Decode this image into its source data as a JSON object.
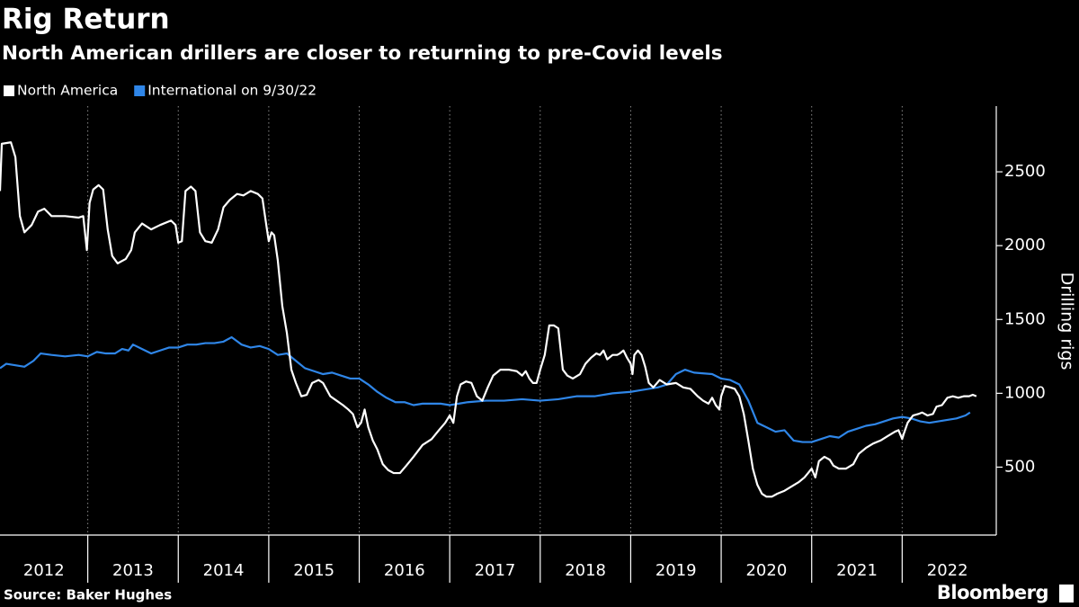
{
  "chart_data": {
    "type": "line",
    "title": "Rig Return",
    "subtitle": "North American drillers are closer to returning to pre-Covid levels",
    "y_label": "Drilling rigs",
    "source": "Source: Baker Hughes",
    "brand": "Bloomberg",
    "legend": "top-left",
    "grid": "x",
    "background": "#000000",
    "xlim": [
      2012.03,
      2023.04
    ],
    "xticks": [
      2012,
      2013,
      2014,
      2015,
      2016,
      2017,
      2018,
      2019,
      2020,
      2021,
      2022
    ],
    "ylim": [
      40,
      2945
    ],
    "yticks": [
      500,
      1000,
      1500,
      2000,
      2500
    ],
    "series": [
      {
        "name": "North America",
        "color": "#ffffff",
        "x": [
          2012.03,
          2012.05,
          2012.15,
          2012.2,
          2012.25,
          2012.3,
          2012.38,
          2012.45,
          2012.52,
          2012.6,
          2012.75,
          2012.9,
          2012.95,
          2012.99,
          2013.02,
          2013.06,
          2013.12,
          2013.17,
          2013.22,
          2013.27,
          2013.33,
          2013.42,
          2013.48,
          2013.52,
          2013.6,
          2013.7,
          2013.8,
          2013.92,
          2013.97,
          2014.0,
          2014.04,
          2014.08,
          2014.14,
          2014.19,
          2014.24,
          2014.3,
          2014.37,
          2014.44,
          2014.5,
          2014.57,
          2014.65,
          2014.72,
          2014.8,
          2014.88,
          2014.93,
          2014.98,
          2015.0,
          2015.03,
          2015.06,
          2015.1,
          2015.15,
          2015.2,
          2015.25,
          2015.3,
          2015.36,
          2015.42,
          2015.48,
          2015.55,
          2015.6,
          2015.68,
          2015.75,
          2015.82,
          2015.88,
          2015.93,
          2015.98,
          2016.02,
          2016.06,
          2016.1,
          2016.15,
          2016.2,
          2016.26,
          2016.32,
          2016.38,
          2016.45,
          2016.52,
          2016.6,
          2016.7,
          2016.8,
          2016.88,
          2016.95,
          2017.0,
          2017.04,
          2017.08,
          2017.12,
          2017.18,
          2017.24,
          2017.3,
          2017.36,
          2017.42,
          2017.48,
          2017.56,
          2017.65,
          2017.74,
          2017.8,
          2017.84,
          2017.88,
          2017.92,
          2017.96,
          2018.0,
          2018.05,
          2018.1,
          2018.15,
          2018.2,
          2018.25,
          2018.3,
          2018.36,
          2018.44,
          2018.5,
          2018.56,
          2018.62,
          2018.66,
          2018.7,
          2018.74,
          2018.8,
          2018.85,
          2018.88,
          2018.92,
          2018.96,
          2019.0,
          2019.02,
          2019.04,
          2019.08,
          2019.12,
          2019.16,
          2019.2,
          2019.25,
          2019.32,
          2019.4,
          2019.5,
          2019.58,
          2019.66,
          2019.74,
          2019.8,
          2019.86,
          2019.9,
          2019.94,
          2019.98,
          2020.0,
          2020.04,
          2020.1,
          2020.15,
          2020.2,
          2020.25,
          2020.3,
          2020.35,
          2020.4,
          2020.45,
          2020.5,
          2020.56,
          2020.62,
          2020.7,
          2020.78,
          2020.86,
          2020.92,
          2020.96,
          2021.0,
          2021.04,
          2021.08,
          2021.14,
          2021.2,
          2021.24,
          2021.3,
          2021.38,
          2021.46,
          2021.52,
          2021.6,
          2021.68,
          2021.76,
          2021.84,
          2021.92,
          2021.96,
          2022.0,
          2022.02,
          2022.06,
          2022.12,
          2022.18,
          2022.22,
          2022.28,
          2022.34,
          2022.38,
          2022.44,
          2022.5,
          2022.56,
          2022.62,
          2022.68,
          2022.74,
          2022.78,
          2022.82
        ],
        "values": [
          2370,
          2690,
          2700,
          2600,
          2200,
          2090,
          2140,
          2230,
          2250,
          2200,
          2200,
          2190,
          2200,
          1970,
          2290,
          2380,
          2410,
          2380,
          2110,
          1930,
          1880,
          1910,
          1970,
          2090,
          2150,
          2110,
          2140,
          2170,
          2140,
          2020,
          2030,
          2370,
          2400,
          2370,
          2090,
          2030,
          2020,
          2110,
          2260,
          2310,
          2350,
          2340,
          2370,
          2350,
          2320,
          2110,
          2030,
          2090,
          2070,
          1900,
          1590,
          1410,
          1160,
          1070,
          980,
          990,
          1070,
          1090,
          1070,
          980,
          950,
          920,
          890,
          860,
          770,
          800,
          890,
          770,
          680,
          620,
          520,
          480,
          460,
          460,
          510,
          570,
          650,
          690,
          750,
          800,
          850,
          800,
          980,
          1060,
          1080,
          1070,
          980,
          950,
          1040,
          1120,
          1160,
          1160,
          1150,
          1120,
          1150,
          1100,
          1070,
          1070,
          1160,
          1260,
          1460,
          1460,
          1440,
          1160,
          1120,
          1100,
          1130,
          1200,
          1240,
          1270,
          1260,
          1290,
          1230,
          1260,
          1260,
          1270,
          1290,
          1240,
          1200,
          1130,
          1260,
          1290,
          1260,
          1180,
          1070,
          1040,
          1090,
          1060,
          1070,
          1040,
          1030,
          980,
          950,
          930,
          970,
          920,
          890,
          980,
          1050,
          1040,
          1030,
          980,
          860,
          680,
          490,
          380,
          320,
          300,
          300,
          320,
          340,
          370,
          400,
          430,
          460,
          490,
          430,
          540,
          570,
          550,
          510,
          490,
          490,
          520,
          590,
          630,
          660,
          680,
          710,
          740,
          750,
          690,
          730,
          800,
          850,
          860,
          870,
          850,
          860,
          910,
          920,
          970,
          980,
          970,
          980,
          980,
          990,
          980
        ]
      },
      {
        "name": "International on 9/30/22",
        "color": "#2f86e8",
        "x": [
          2012.03,
          2012.1,
          2012.2,
          2012.3,
          2012.4,
          2012.48,
          2012.6,
          2012.75,
          2012.9,
          2013.0,
          2013.1,
          2013.2,
          2013.3,
          2013.38,
          2013.45,
          2013.5,
          2013.6,
          2013.7,
          2013.8,
          2013.9,
          2014.0,
          2014.1,
          2014.2,
          2014.3,
          2014.4,
          2014.5,
          2014.59,
          2014.7,
          2014.8,
          2014.9,
          2015.0,
          2015.1,
          2015.2,
          2015.3,
          2015.4,
          2015.5,
          2015.6,
          2015.7,
          2015.8,
          2015.9,
          2016.0,
          2016.1,
          2016.2,
          2016.3,
          2016.4,
          2016.5,
          2016.6,
          2016.7,
          2016.8,
          2016.9,
          2017.0,
          2017.1,
          2017.2,
          2017.4,
          2017.6,
          2017.8,
          2018.0,
          2018.2,
          2018.4,
          2018.6,
          2018.8,
          2019.0,
          2019.1,
          2019.3,
          2019.4,
          2019.5,
          2019.6,
          2019.7,
          2019.9,
          2020.0,
          2020.1,
          2020.2,
          2020.3,
          2020.4,
          2020.5,
          2020.6,
          2020.7,
          2020.8,
          2020.9,
          2021.0,
          2021.1,
          2021.2,
          2021.3,
          2021.4,
          2021.5,
          2021.6,
          2021.7,
          2021.8,
          2021.9,
          2022.0,
          2022.1,
          2022.2,
          2022.3,
          2022.4,
          2022.5,
          2022.6,
          2022.7,
          2022.75
        ],
        "values": [
          1170,
          1200,
          1190,
          1180,
          1220,
          1270,
          1260,
          1250,
          1260,
          1250,
          1280,
          1270,
          1270,
          1300,
          1290,
          1330,
          1300,
          1270,
          1290,
          1310,
          1310,
          1330,
          1330,
          1340,
          1340,
          1350,
          1380,
          1330,
          1310,
          1320,
          1300,
          1260,
          1270,
          1220,
          1170,
          1150,
          1130,
          1140,
          1120,
          1100,
          1100,
          1060,
          1010,
          970,
          940,
          940,
          920,
          930,
          930,
          930,
          920,
          930,
          940,
          950,
          950,
          960,
          950,
          960,
          980,
          980,
          1000,
          1010,
          1020,
          1040,
          1060,
          1130,
          1160,
          1140,
          1130,
          1100,
          1090,
          1060,
          950,
          800,
          770,
          740,
          750,
          680,
          670,
          670,
          690,
          710,
          700,
          740,
          760,
          780,
          790,
          810,
          830,
          840,
          830,
          810,
          800,
          810,
          820,
          830,
          850,
          870
        ]
      }
    ]
  }
}
